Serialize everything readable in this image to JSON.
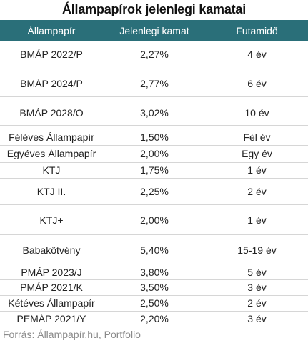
{
  "title": "Állampapírok jelenlegi kamatai",
  "header": {
    "col1": "Állampapír",
    "col2": "Jelenlegi kamat",
    "col3": "Futamidő"
  },
  "rows": [
    {
      "name": "BMÁP 2022/P",
      "rate": "2,27%",
      "term": "4 év"
    },
    {
      "name": "BMÁP 2024/P",
      "rate": "2,77%",
      "term": "6 év"
    },
    {
      "name": "BMÁP 2028/O",
      "rate": "3,02%",
      "term": "10 év"
    },
    {
      "name": "Féléves Állampapír",
      "rate": "1,50%",
      "term": "Fél év"
    },
    {
      "name": "Egyéves Állampapír",
      "rate": "2,00%",
      "term": "Egy év"
    },
    {
      "name": "KTJ",
      "rate": "1,75%",
      "term": "1 év"
    },
    {
      "name": "KTJ II.",
      "rate": "2,25%",
      "term": "2 év"
    },
    {
      "name": "KTJ+",
      "rate": "2,00%",
      "term": "1 év"
    },
    {
      "name": "Babakötvény",
      "rate": "5,40%",
      "term": "15-19 év"
    },
    {
      "name": "PMÁP 2023/J",
      "rate": "3,80%",
      "term": "5 év"
    },
    {
      "name": "PMÁP 2021/K",
      "rate": "3,50%",
      "term": "3 év"
    },
    {
      "name": "Kétéves Állampapír",
      "rate": "2,50%",
      "term": "2 év"
    },
    {
      "name": "PEMÁP 2021/Y",
      "rate": "2,20%",
      "term": "3 év"
    }
  ],
  "source": "Forrás: Állampapír.hu, Portfolio",
  "colors": {
    "header_bg": "#2a6f79",
    "header_text": "#ffffff",
    "divider": "#d6d6d6"
  }
}
